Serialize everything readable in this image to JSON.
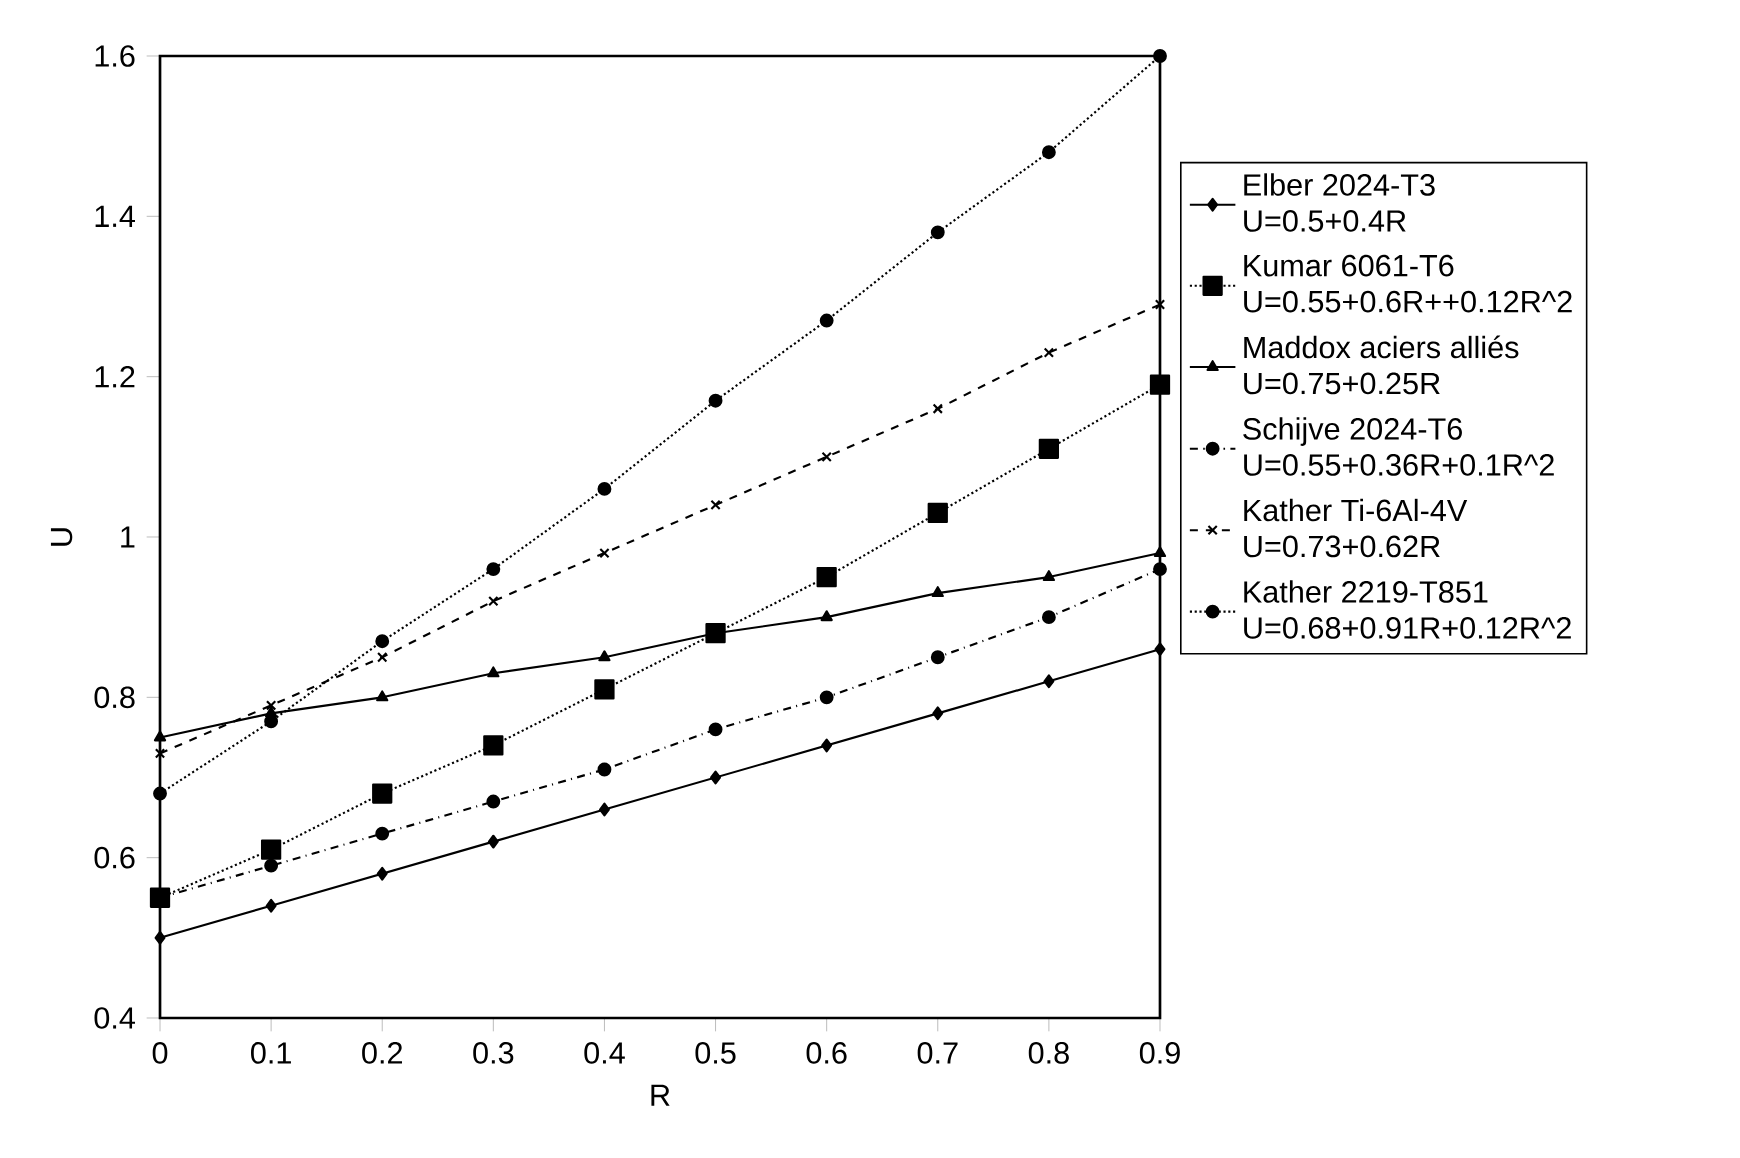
{
  "chart_data": {
    "type": "line",
    "xlabel": "R",
    "ylabel": "U",
    "x": [
      0,
      0.1,
      0.2,
      0.3,
      0.4,
      0.5,
      0.6,
      0.7,
      0.8,
      0.9
    ],
    "xlim": [
      0,
      0.9
    ],
    "xticks": [
      0,
      0.1,
      0.2,
      0.3,
      0.4,
      0.5,
      0.6,
      0.7,
      0.8,
      0.9
    ],
    "ylim": [
      0.4,
      1.6
    ],
    "yticks": [
      0.4,
      0.6,
      0.8,
      1,
      1.2,
      1.4,
      1.6
    ],
    "grid": false,
    "legend": "right",
    "series": [
      {
        "name": "Elber 2024-T3\nU=0.5+0.4R",
        "color": "#000000",
        "marker": "diamond",
        "line_style": "solid",
        "values": [
          0.5,
          0.54,
          0.58,
          0.62,
          0.66,
          0.7,
          0.74,
          0.78,
          0.82,
          0.86
        ]
      },
      {
        "name": "Kumar 6061-T6\nU=0.55+0.6R++0.12R^2",
        "color": "#000000",
        "marker": "square",
        "line_style": "dotted",
        "values": [
          0.55,
          0.61,
          0.68,
          0.74,
          0.81,
          0.88,
          0.95,
          1.03,
          1.11,
          1.19
        ]
      },
      {
        "name": "Maddox aciers alliés\nU=0.75+0.25R",
        "color": "#000000",
        "marker": "triangle",
        "line_style": "solid",
        "values": [
          0.75,
          0.78,
          0.8,
          0.83,
          0.85,
          0.88,
          0.9,
          0.93,
          0.95,
          0.98
        ]
      },
      {
        "name": "Schijve 2024-T6\nU=0.55+0.36R+0.1R^2",
        "color": "#000000",
        "marker": "circle",
        "line_style": "dashdot",
        "values": [
          0.55,
          0.59,
          0.63,
          0.67,
          0.71,
          0.76,
          0.8,
          0.85,
          0.9,
          0.96
        ]
      },
      {
        "name": "Kather Ti-6Al-4V\nU=0.73+0.62R",
        "color": "#000000",
        "marker": "cross",
        "line_style": "dashed",
        "values": [
          0.73,
          0.79,
          0.85,
          0.92,
          0.98,
          1.04,
          1.1,
          1.16,
          1.23,
          1.29
        ]
      },
      {
        "name": "Kather 2219-T851\nU=0.68+0.91R+0.12R^2",
        "color": "#000000",
        "marker": "circle",
        "line_style": "dotted",
        "values": [
          0.68,
          0.77,
          0.87,
          0.96,
          1.06,
          1.17,
          1.27,
          1.38,
          1.48,
          1.6
        ]
      }
    ]
  }
}
